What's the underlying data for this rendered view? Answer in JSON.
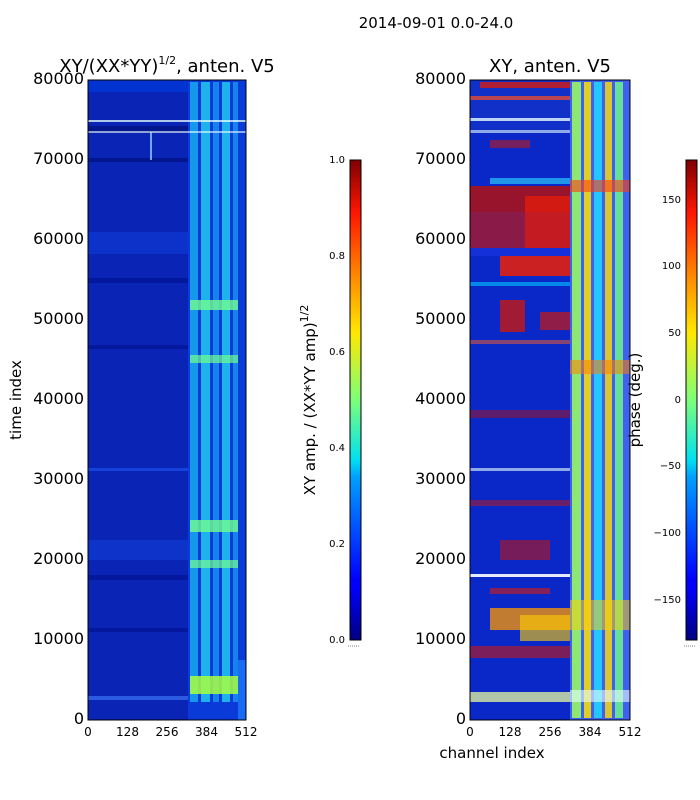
{
  "figure": {
    "suptitle": "2014-09-01 0.0-24.0"
  },
  "chart_data": [
    {
      "type": "heatmap",
      "title_main": "XY/(XX*YY)",
      "title_exp": "1/2",
      "title_tail": ", anten. V5",
      "xlabel": "",
      "ylabel": "time index",
      "xlim": [
        0,
        512
      ],
      "ylim": [
        0,
        80000
      ],
      "xticks": [
        0,
        128,
        256,
        384,
        512
      ],
      "xtick_labels": [
        "0",
        "128",
        "256",
        "384",
        "512"
      ],
      "yticks": [
        0,
        10000,
        20000,
        30000,
        40000,
        50000,
        60000,
        70000,
        80000
      ],
      "ytick_labels": [
        "0",
        "10000",
        "20000",
        "30000",
        "40000",
        "50000",
        "60000",
        "70000",
        "80000"
      ],
      "colormap": "jet",
      "colorbar": {
        "label_main": "XY amp. / (XX*YY amp)",
        "label_exp": "1/2",
        "range": [
          0,
          1.0
        ],
        "ticks": [
          0.0,
          0.2,
          0.4,
          0.6,
          0.8,
          1.0
        ],
        "tick_labels": [
          "0.0",
          "0.2",
          "0.4",
          "0.6",
          "0.8",
          "1.0"
        ]
      }
    },
    {
      "type": "heatmap",
      "title": "XY, anten. V5",
      "xlabel": "channel index",
      "ylabel": "",
      "xlim": [
        0,
        512
      ],
      "ylim": [
        0,
        80000
      ],
      "xticks": [
        0,
        128,
        256,
        384,
        512
      ],
      "xtick_labels": [
        "0",
        "128",
        "256",
        "384",
        "512"
      ],
      "yticks": [
        0,
        10000,
        20000,
        30000,
        40000,
        50000,
        60000,
        70000,
        80000
      ],
      "ytick_labels": [
        "0",
        "10000",
        "20000",
        "30000",
        "40000",
        "50000",
        "60000",
        "70000",
        "80000"
      ],
      "colormap": "jet",
      "colorbar": {
        "label": "phase (deg.)",
        "range": [
          -180,
          180
        ],
        "ticks": [
          -150,
          -100,
          -50,
          0,
          50,
          100,
          150
        ],
        "tick_labels": [
          "−150",
          "−100",
          "−50",
          "0",
          "50",
          "100",
          "150"
        ]
      }
    }
  ]
}
